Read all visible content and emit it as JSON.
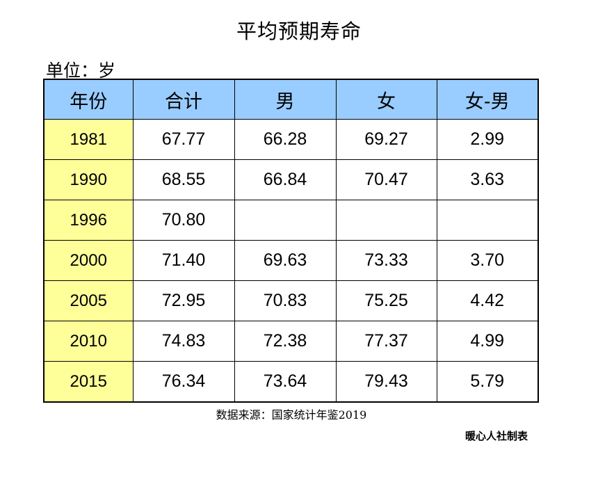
{
  "title": "平均预期寿命",
  "unit": "单位：岁",
  "table": {
    "headers": [
      "年份",
      "合计",
      "男",
      "女",
      "女-男"
    ],
    "rows": [
      [
        "1981",
        "67.77",
        "66.28",
        "69.27",
        "2.99"
      ],
      [
        "1990",
        "68.55",
        "66.84",
        "70.47",
        "3.63"
      ],
      [
        "1996",
        "70.80",
        "",
        "",
        ""
      ],
      [
        "2000",
        "71.40",
        "69.63",
        "73.33",
        "3.70"
      ],
      [
        "2005",
        "72.95",
        "70.83",
        "75.25",
        "4.42"
      ],
      [
        "2010",
        "74.83",
        "72.38",
        "77.37",
        "4.99"
      ],
      [
        "2015",
        "76.34",
        "73.64",
        "79.43",
        "5.79"
      ]
    ]
  },
  "source": "数据来源：国家统计年鉴2019",
  "credit": "暖心人社制表",
  "colors": {
    "header_bg": "#99ccff",
    "year_bg": "#ffff99"
  }
}
